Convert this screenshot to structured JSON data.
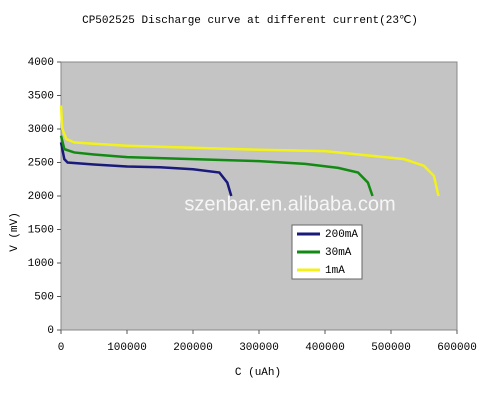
{
  "chart_data": {
    "type": "line",
    "title": "CP502525 Discharge  curve at different current(23℃)",
    "xlabel": "C (uAh)",
    "ylabel": "V (mV)",
    "watermark": "szenbar.en.alibaba.com",
    "xlim": [
      0,
      600000
    ],
    "ylim": [
      0,
      4000
    ],
    "xticks": [
      0,
      100000,
      200000,
      300000,
      400000,
      500000,
      600000
    ],
    "yticks": [
      0,
      500,
      1000,
      1500,
      2000,
      2500,
      3000,
      3500,
      4000
    ],
    "series": [
      {
        "name": "200mA",
        "color": "#1a1a7a",
        "x": [
          0,
          5000,
          10000,
          50000,
          100000,
          150000,
          200000,
          240000,
          252000,
          258000
        ],
        "values": [
          2800,
          2550,
          2500,
          2470,
          2440,
          2430,
          2400,
          2350,
          2200,
          2000
        ]
      },
      {
        "name": "30mA",
        "color": "#138a13",
        "x": [
          0,
          5000,
          20000,
          50000,
          100000,
          200000,
          300000,
          370000,
          420000,
          450000,
          465000,
          472000
        ],
        "values": [
          2900,
          2700,
          2650,
          2620,
          2580,
          2550,
          2520,
          2480,
          2420,
          2350,
          2200,
          2000
        ]
      },
      {
        "name": "1mA",
        "color": "#f2f21a",
        "x": [
          0,
          2000,
          8000,
          20000,
          50000,
          100000,
          200000,
          300000,
          400000,
          470000,
          520000,
          550000,
          565000,
          572000
        ],
        "values": [
          3350,
          3000,
          2850,
          2800,
          2780,
          2750,
          2720,
          2690,
          2670,
          2600,
          2550,
          2450,
          2300,
          2000
        ]
      }
    ]
  }
}
